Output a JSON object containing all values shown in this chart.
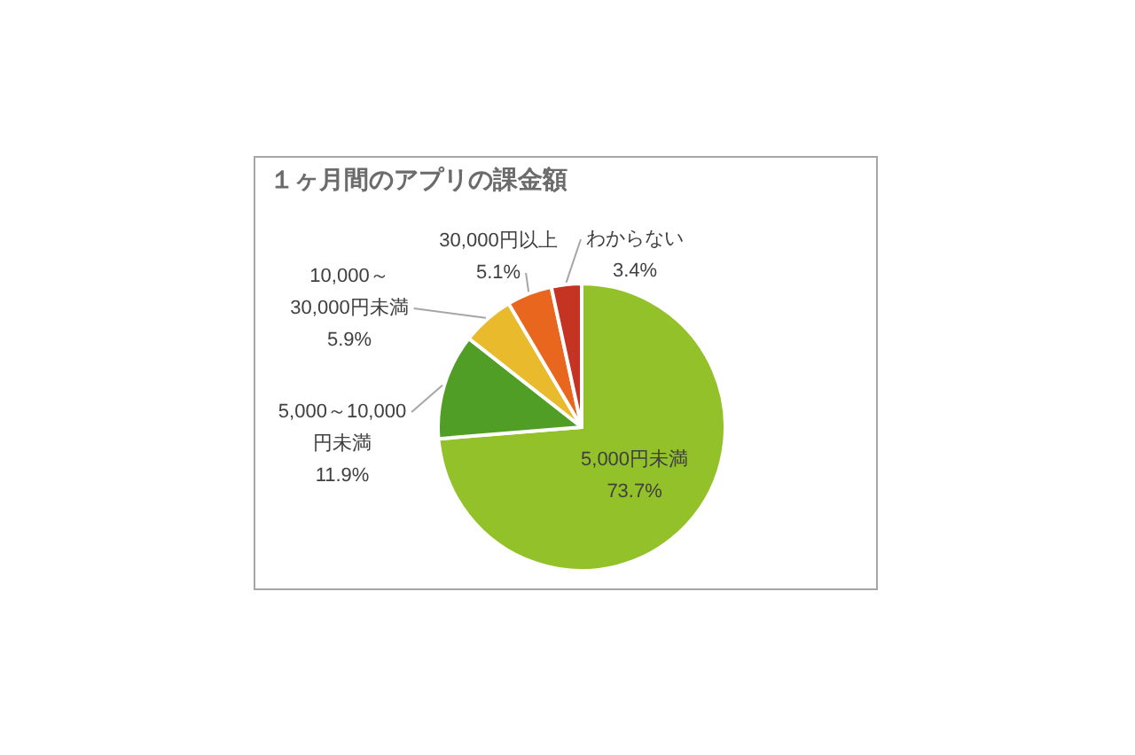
{
  "chart_data": {
    "type": "pie",
    "title": "１ヶ月間のアプリの課金額",
    "categories": [
      "5,000円未満",
      "5,000～10,000円未満",
      "10,000～30,000円未満",
      "30,000円以上",
      "わからない"
    ],
    "values": [
      73.7,
      11.9,
      5.9,
      5.1,
      3.4
    ],
    "colors": [
      "#93c12a",
      "#519e27",
      "#e8ba2c",
      "#e8661d",
      "#c53322"
    ],
    "value_labels": [
      "73.7%",
      "11.9%",
      "5.9%",
      "5.1%",
      "3.4%"
    ]
  }
}
